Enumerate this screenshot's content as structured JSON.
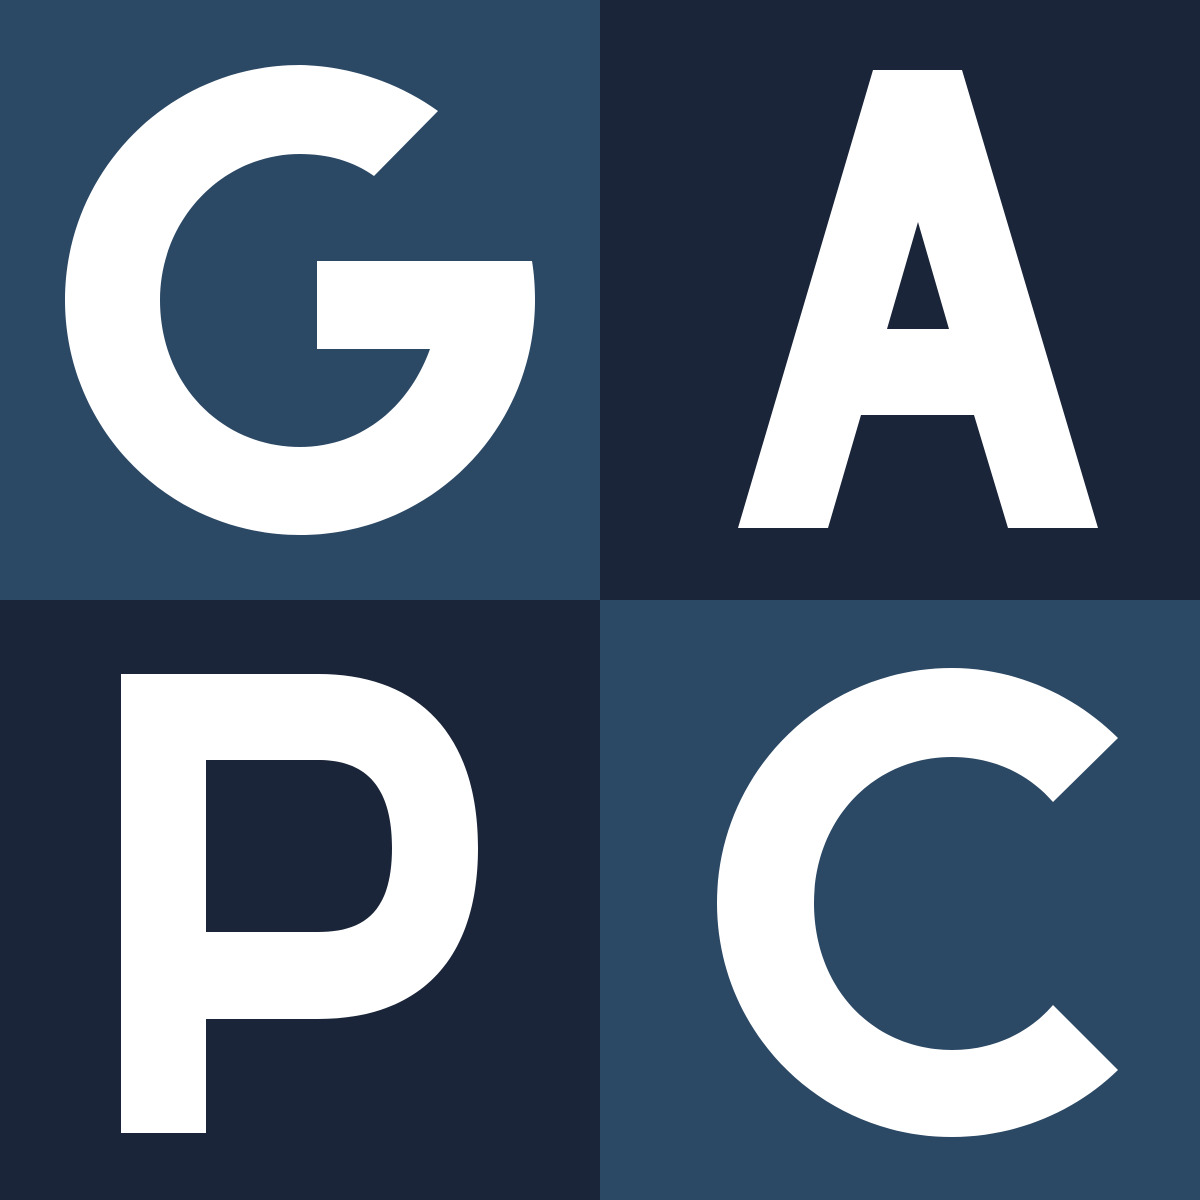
{
  "logo": {
    "letters": [
      "G",
      "A",
      "P",
      "C"
    ]
  },
  "colors": {
    "tile_light": "#2b4865",
    "tile_dark": "#1b2539",
    "letter": "#ffffff"
  }
}
